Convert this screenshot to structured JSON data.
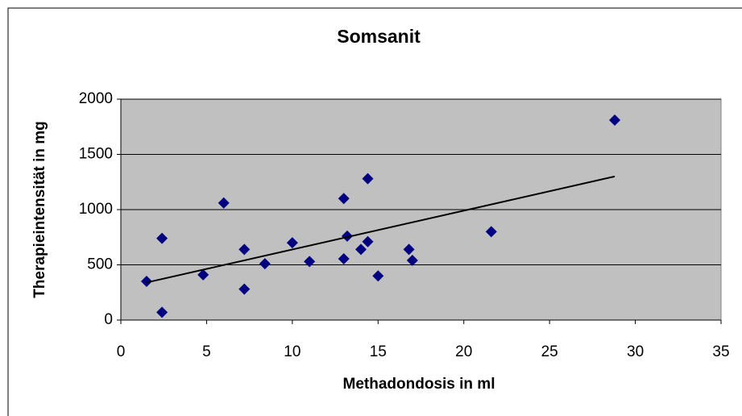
{
  "chart_data": {
    "type": "scatter",
    "title": "Somsanit",
    "xlabel": "Methadondosis in ml",
    "ylabel": "Therapieintensität in mg",
    "series": [
      {
        "color": "#000080",
        "x": [
          1.5,
          2.4,
          2.4,
          4.8,
          6.0,
          7.2,
          7.2,
          8.4,
          10.0,
          11.0,
          13.0,
          13.0,
          13.2,
          14.0,
          14.4,
          14.4,
          15.0,
          16.8,
          17.0,
          21.6,
          28.8
        ],
        "values": [
          350,
          740,
          70,
          410,
          1060,
          640,
          280,
          510,
          700,
          530,
          1100,
          555,
          760,
          640,
          710,
          1280,
          400,
          640,
          540,
          800,
          1810
        ]
      }
    ],
    "trendline": {
      "color": "#000000",
      "x": [
        1.5,
        28.8
      ],
      "values": [
        340,
        1300
      ]
    },
    "xlim": [
      0,
      35
    ],
    "xticks": [
      0,
      5,
      10,
      15,
      20,
      25,
      30,
      35
    ],
    "ylim": [
      0,
      2000
    ],
    "yticks": [
      0,
      500,
      1000,
      1500,
      2000
    ],
    "grid": true
  }
}
